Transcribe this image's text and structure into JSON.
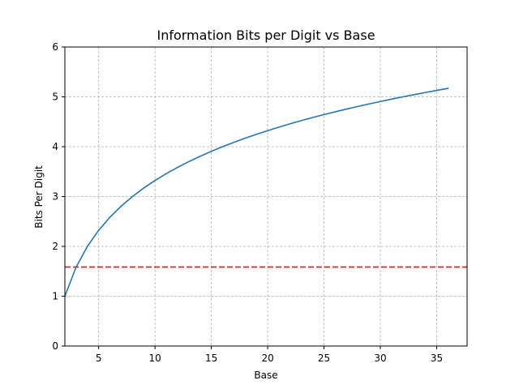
{
  "chart_data": {
    "type": "line",
    "title": "Information Bits per Digit vs Base",
    "xlabel": "Base",
    "ylabel": "Bits Per Digit",
    "xlim": [
      2,
      37.7
    ],
    "ylim": [
      0,
      6
    ],
    "xticks": [
      5,
      10,
      15,
      20,
      25,
      30,
      35
    ],
    "yticks": [
      0,
      1,
      2,
      3,
      4,
      5,
      6
    ],
    "grid": true,
    "series": [
      {
        "color": "#1f77b4",
        "style": "solid",
        "x": [
          2,
          3,
          4,
          5,
          6,
          7,
          8,
          9,
          10,
          11,
          12,
          13,
          14,
          15,
          16,
          17,
          18,
          19,
          20,
          21,
          22,
          23,
          24,
          25,
          26,
          27,
          28,
          29,
          30,
          31,
          32,
          33,
          34,
          35,
          36
        ],
        "y": [
          1.0,
          1.585,
          2.0,
          2.322,
          2.585,
          2.807,
          3.0,
          3.17,
          3.322,
          3.459,
          3.585,
          3.7,
          3.807,
          3.907,
          4.0,
          4.087,
          4.17,
          4.248,
          4.322,
          4.392,
          4.459,
          4.524,
          4.585,
          4.644,
          4.7,
          4.755,
          4.807,
          4.858,
          4.907,
          4.954,
          5.0,
          5.044,
          5.087,
          5.129,
          5.17
        ]
      }
    ],
    "reference_lines": [
      {
        "orientation": "horizontal",
        "y": 1.585,
        "color": "#d62728",
        "style": "dashed"
      }
    ]
  }
}
